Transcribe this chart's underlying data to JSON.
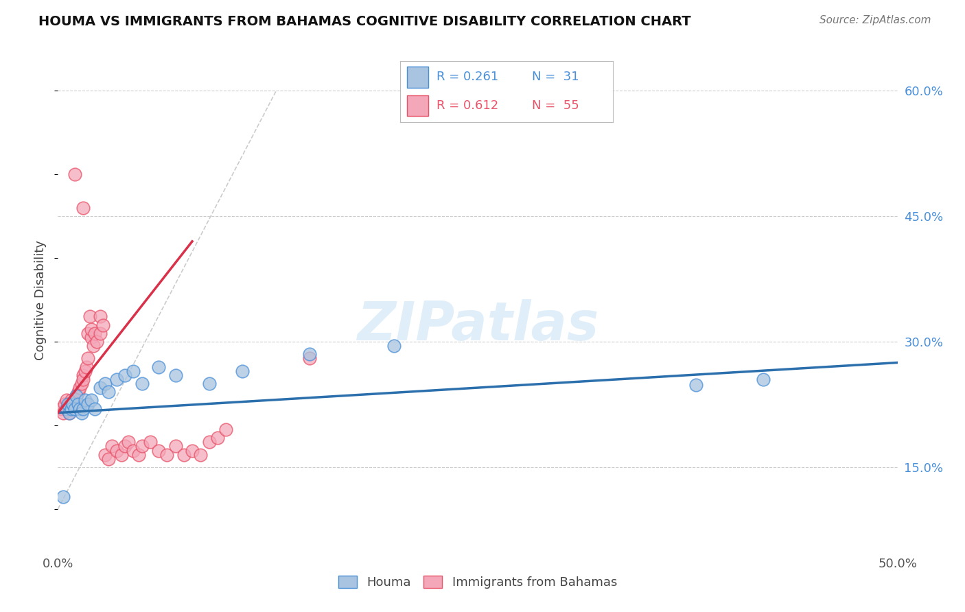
{
  "title": "HOUMA VS IMMIGRANTS FROM BAHAMAS COGNITIVE DISABILITY CORRELATION CHART",
  "source": "Source: ZipAtlas.com",
  "ylabel": "Cognitive Disability",
  "xlim": [
    0.0,
    0.5
  ],
  "ylim": [
    0.05,
    0.65
  ],
  "xtick_positions": [
    0.0,
    0.1,
    0.2,
    0.3,
    0.4,
    0.5
  ],
  "xtick_labels": [
    "0.0%",
    "",
    "",
    "",
    "",
    "50.0%"
  ],
  "ytick_labels_right": [
    "15.0%",
    "30.0%",
    "45.0%",
    "60.0%"
  ],
  "ytick_positions_right": [
    0.15,
    0.3,
    0.45,
    0.6
  ],
  "houma_color": "#a8c4e0",
  "bahamas_color": "#f4a7b9",
  "houma_edge_color": "#4a90d9",
  "bahamas_edge_color": "#e8546a",
  "houma_line_color": "#2c6fad",
  "bahamas_line_color": "#d9314a",
  "diagonal_color": "#cccccc",
  "background_color": "#ffffff",
  "houma_scatter_x": [
    0.003,
    0.005,
    0.006,
    0.007,
    0.008,
    0.009,
    0.01,
    0.011,
    0.012,
    0.013,
    0.014,
    0.015,
    0.016,
    0.018,
    0.02,
    0.022,
    0.025,
    0.028,
    0.03,
    0.035,
    0.04,
    0.045,
    0.05,
    0.06,
    0.07,
    0.09,
    0.11,
    0.15,
    0.2,
    0.38,
    0.42
  ],
  "houma_scatter_y": [
    0.115,
    0.22,
    0.225,
    0.215,
    0.22,
    0.225,
    0.22,
    0.235,
    0.225,
    0.22,
    0.215,
    0.22,
    0.23,
    0.225,
    0.23,
    0.22,
    0.245,
    0.25,
    0.24,
    0.255,
    0.26,
    0.265,
    0.25,
    0.27,
    0.26,
    0.25,
    0.265,
    0.285,
    0.295,
    0.248,
    0.255
  ],
  "bahamas_scatter_x": [
    0.002,
    0.003,
    0.004,
    0.005,
    0.005,
    0.006,
    0.007,
    0.007,
    0.008,
    0.008,
    0.009,
    0.01,
    0.01,
    0.011,
    0.012,
    0.013,
    0.014,
    0.015,
    0.015,
    0.016,
    0.017,
    0.018,
    0.018,
    0.019,
    0.02,
    0.02,
    0.021,
    0.022,
    0.023,
    0.025,
    0.025,
    0.027,
    0.028,
    0.03,
    0.032,
    0.035,
    0.038,
    0.04,
    0.042,
    0.045,
    0.048,
    0.05,
    0.055,
    0.06,
    0.065,
    0.07,
    0.075,
    0.08,
    0.085,
    0.09,
    0.095,
    0.1,
    0.01,
    0.015,
    0.15
  ],
  "bahamas_scatter_y": [
    0.22,
    0.215,
    0.225,
    0.23,
    0.22,
    0.218,
    0.215,
    0.225,
    0.222,
    0.23,
    0.225,
    0.23,
    0.228,
    0.235,
    0.24,
    0.245,
    0.25,
    0.26,
    0.255,
    0.265,
    0.27,
    0.28,
    0.31,
    0.33,
    0.305,
    0.315,
    0.295,
    0.31,
    0.3,
    0.33,
    0.31,
    0.32,
    0.165,
    0.16,
    0.175,
    0.17,
    0.165,
    0.175,
    0.18,
    0.17,
    0.165,
    0.175,
    0.18,
    0.17,
    0.165,
    0.175,
    0.165,
    0.17,
    0.165,
    0.18,
    0.185,
    0.195,
    0.5,
    0.46,
    0.28
  ],
  "houma_line_x": [
    0.0,
    0.5
  ],
  "houma_line_y": [
    0.215,
    0.275
  ],
  "bahamas_line_x": [
    0.0,
    0.08
  ],
  "bahamas_line_y": [
    0.215,
    0.42
  ]
}
